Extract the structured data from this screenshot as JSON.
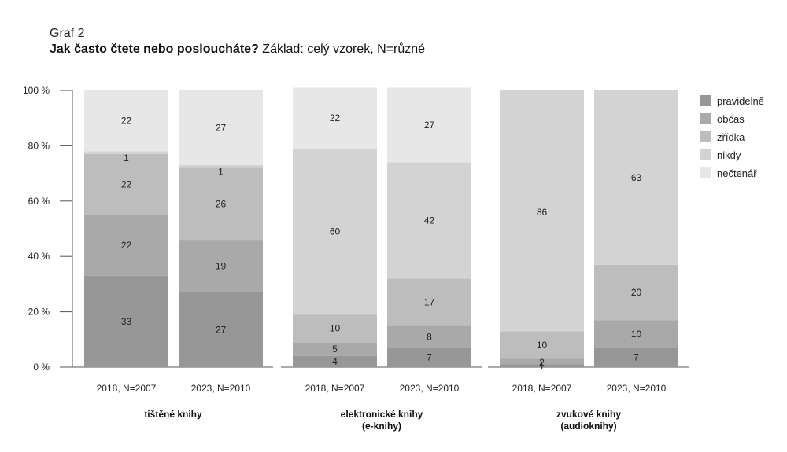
{
  "header": {
    "label": "Graf 2",
    "title_bold": "Jak často čtete nebo posloucháte?",
    "title_rest": " Základ: celý vzorek, N=různé"
  },
  "chart_data": {
    "type": "bar",
    "stacked": true,
    "title": "Jak často čtete nebo posloucháte?",
    "subtitle": "Základ: celý vzorek, N=různé",
    "ylim": [
      0,
      100
    ],
    "y_ticks": [
      0,
      20,
      40,
      60,
      80,
      100
    ],
    "y_tick_labels": [
      "0 %",
      "20 %",
      "40 %",
      "60 %",
      "80 %",
      "100 %"
    ],
    "grid": false,
    "legend_position": "right",
    "series": [
      {
        "name": "pravidelně",
        "color": "#979797"
      },
      {
        "name": "občas",
        "color": "#a9a9a9"
      },
      {
        "name": "zřídka",
        "color": "#bdbdbd"
      },
      {
        "name": "nikdy",
        "color": "#d3d3d3"
      },
      {
        "name": "nečtenář",
        "color": "#e7e7e7"
      }
    ],
    "groups": [
      {
        "name_lines": [
          "tištěné knihy"
        ],
        "bars": [
          {
            "label": "2018, N=2007",
            "values": [
              33,
              22,
              22,
              1,
              22
            ]
          },
          {
            "label": "2023, N=2010",
            "values": [
              27,
              19,
              26,
              1,
              27
            ]
          }
        ]
      },
      {
        "name_lines": [
          "elektronické knihy",
          "(e-knihy)"
        ],
        "bars": [
          {
            "label": "2018, N=2007",
            "values": [
              4,
              5,
              10,
              60,
              22
            ]
          },
          {
            "label": "2023, N=2010",
            "values": [
              7,
              8,
              17,
              42,
              27
            ]
          }
        ]
      },
      {
        "name_lines": [
          "zvukové knihy",
          "(audioknihy)"
        ],
        "bars": [
          {
            "label": "2018, N=2007",
            "values": [
              1,
              2,
              10,
              86,
              null
            ]
          },
          {
            "label": "2023, N=2010",
            "values": [
              7,
              10,
              20,
              63,
              null
            ]
          }
        ]
      }
    ]
  }
}
